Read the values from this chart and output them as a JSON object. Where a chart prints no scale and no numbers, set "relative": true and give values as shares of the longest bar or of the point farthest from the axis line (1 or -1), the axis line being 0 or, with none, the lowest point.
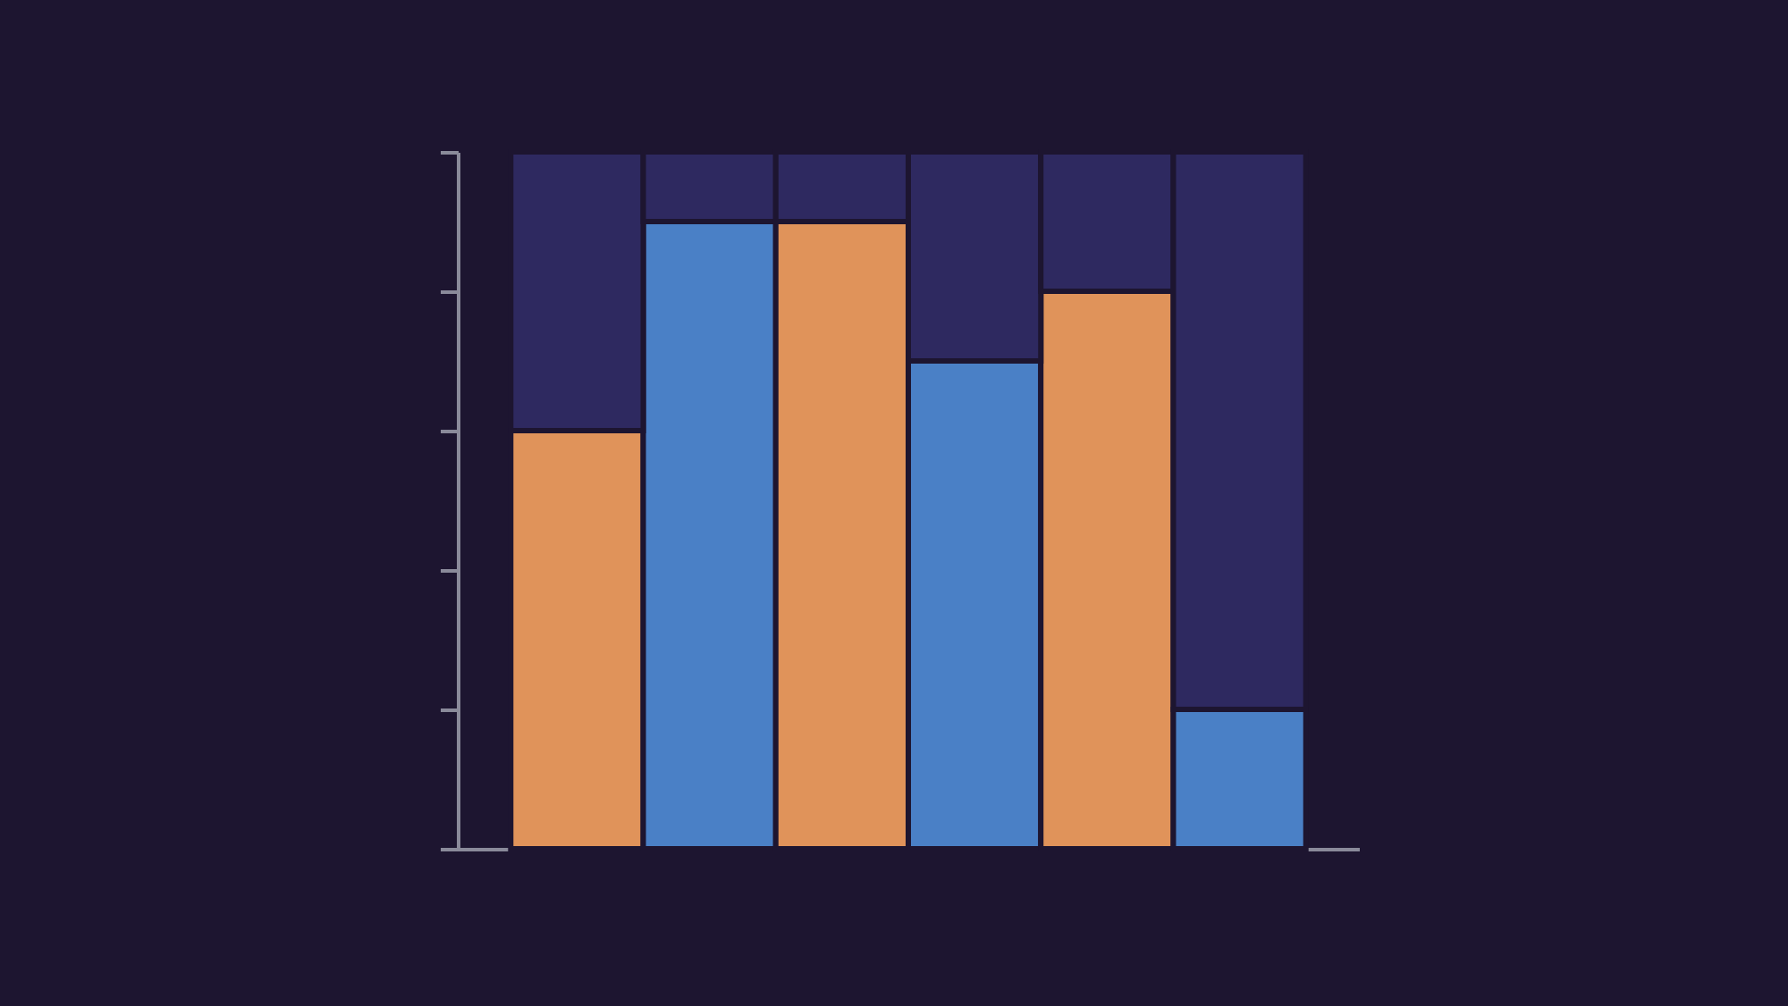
{
  "chart_data": {
    "type": "bar",
    "relative": true,
    "stacked": true,
    "categories": [
      null,
      null,
      null,
      null,
      null,
      null
    ],
    "series": [
      {
        "colors": [
          "#e0935a",
          "#4a80c6",
          "#e0935a",
          "#4a80c6",
          "#e0935a",
          "#4a80c6"
        ],
        "values": [
          0.6,
          0.9,
          0.9,
          0.7,
          0.8,
          0.2
        ]
      },
      {
        "color": "#2e2960",
        "values": [
          0.4,
          0.1,
          0.1,
          0.3,
          0.2,
          0.8
        ]
      }
    ],
    "grid": false
  }
}
